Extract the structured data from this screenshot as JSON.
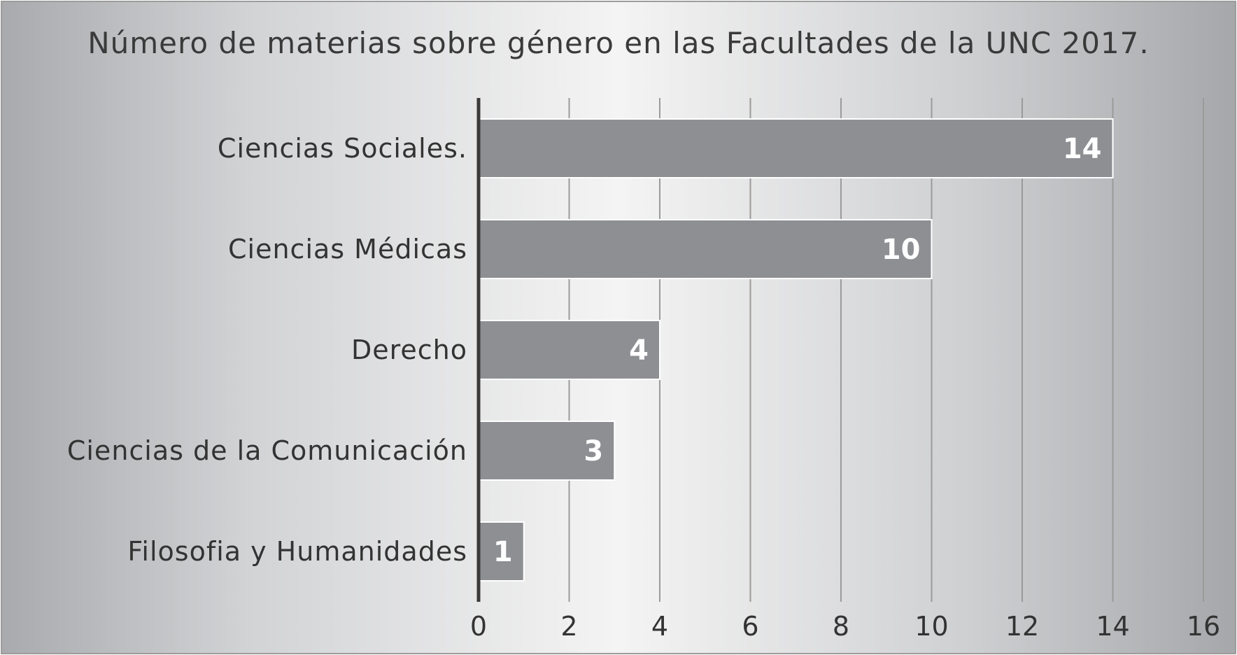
{
  "chart_data": {
    "type": "bar",
    "orientation": "horizontal",
    "title": "Número de materias sobre género en las Facultades de la UNC 2017.",
    "xlabel": "",
    "ylabel": "",
    "categories": [
      "Ciencias Sociales.",
      "Ciencias Médicas",
      "Derecho",
      "Ciencias de la Comunicación",
      "Filosofia y Humanidades"
    ],
    "values": [
      14,
      10,
      4,
      3,
      1
    ],
    "data_labels": [
      "14",
      "10",
      "4",
      "3",
      "1"
    ],
    "xlim": [
      0,
      16
    ],
    "x_ticks": [
      "0",
      "2",
      "4",
      "6",
      "8",
      "10",
      "12",
      "14",
      "16"
    ],
    "grid": "vertical",
    "legend": "none",
    "colors": {
      "bar_fill": "#8e8f93",
      "bar_stroke": "#ffffff",
      "axis_line": "#3a3a3a",
      "gridline": "#9a9a9a",
      "value_label": "#ffffff"
    }
  }
}
